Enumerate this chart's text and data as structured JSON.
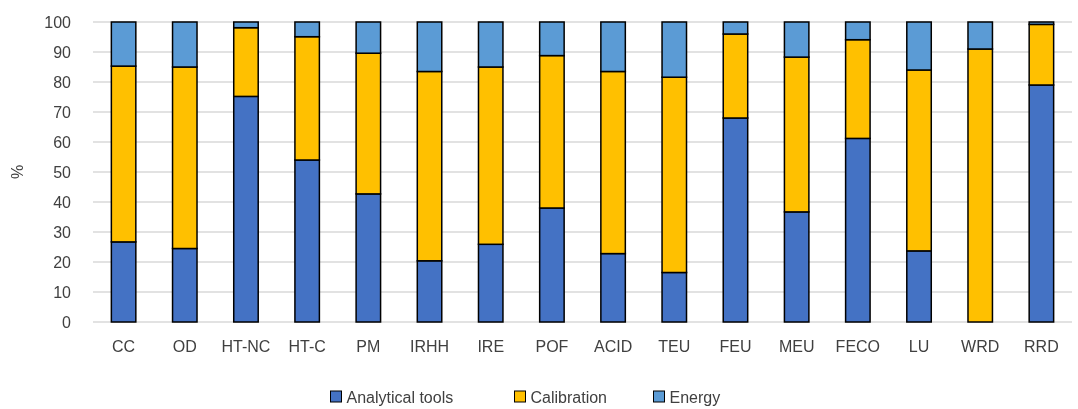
{
  "chart_data": {
    "type": "bar",
    "stacked": true,
    "ylabel": "%",
    "categories": [
      "CC",
      "OD",
      "HT-NC",
      "HT-C",
      "PM",
      "IRHH",
      "IRE",
      "POF",
      "ACID",
      "TEU",
      "FEU",
      "MEU",
      "FECO",
      "LU",
      "WRD",
      "RRD"
    ],
    "series": [
      {
        "name": "Analytical tools",
        "color": "#4472c4",
        "values": [
          26.7,
          24.5,
          75.2,
          54.0,
          42.7,
          20.4,
          25.9,
          38.0,
          22.8,
          16.5,
          68.0,
          36.7,
          61.2,
          23.7,
          0,
          79.0
        ]
      },
      {
        "name": "Calibration",
        "color": "#ffc000",
        "values": [
          58.6,
          60.5,
          22.9,
          41.1,
          46.9,
          63.1,
          59.1,
          50.8,
          60.7,
          65.1,
          28.0,
          51.6,
          32.9,
          60.3,
          91.0,
          20.2
        ]
      },
      {
        "name": "Energy",
        "color": "#5b9bd5",
        "values": [
          14.7,
          15.0,
          1.9,
          4.9,
          10.4,
          16.5,
          15.0,
          11.2,
          16.5,
          18.4,
          4.0,
          11.7,
          5.9,
          16.0,
          9.0,
          0.8
        ]
      }
    ],
    "ylim": [
      0,
      100
    ],
    "yticks": [
      0,
      10,
      20,
      30,
      40,
      50,
      60,
      70,
      80,
      90,
      100
    ],
    "grid": "y",
    "legend": "bottom"
  }
}
